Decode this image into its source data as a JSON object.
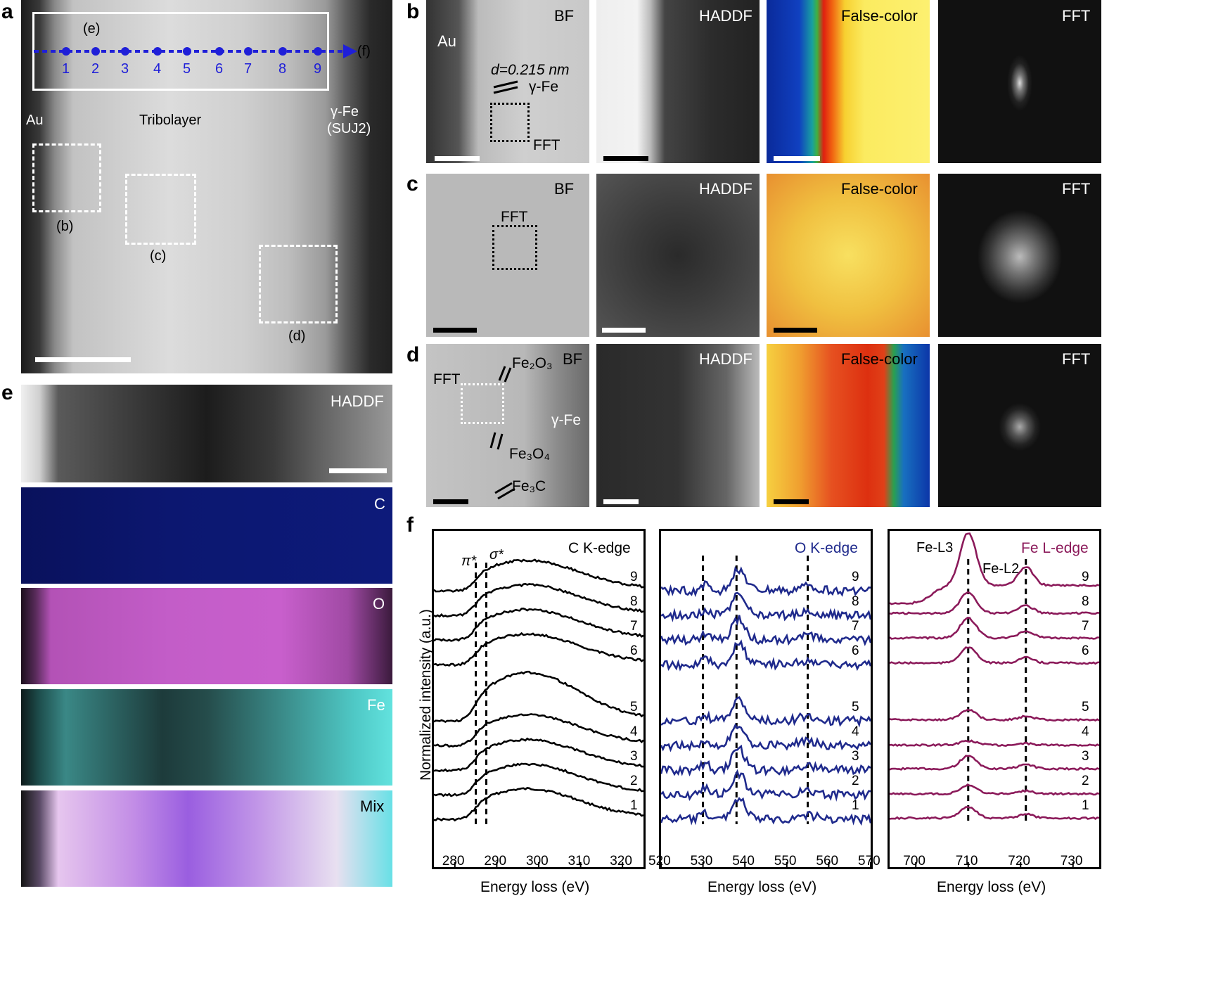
{
  "panel_letters": {
    "a": "a",
    "b": "b",
    "c": "c",
    "d": "d",
    "e": "e",
    "f": "f"
  },
  "panel_a": {
    "roi_label": "(e)",
    "arrow_label": "(f)",
    "points": [
      "1",
      "2",
      "3",
      "4",
      "5",
      "6",
      "7",
      "8",
      "9"
    ],
    "left_label": "Au",
    "center_label": "Tribolayer",
    "right_label_1": "γ-Fe",
    "right_label_2": "(SUJ2)",
    "box_labels": [
      "(b)",
      "(c)",
      "(d)"
    ]
  },
  "panel_b": {
    "labels": [
      "BF",
      "HADDF",
      "False-color",
      "FFT"
    ],
    "au": "Au",
    "d_spacing": "d=0.215 nm",
    "phase": "γ-Fe",
    "fft": "FFT"
  },
  "panel_c": {
    "labels": [
      "BF",
      "HADDF",
      "False-color",
      "FFT"
    ],
    "fft": "FFT"
  },
  "panel_d": {
    "labels": [
      "BF",
      "HADDF",
      "False-color",
      "FFT"
    ],
    "fft": "FFT",
    "fe2o3": "Fe₂O₃",
    "fe3o4": "Fe₃O₄",
    "fe3c": "Fe₃C",
    "gfe": "γ-Fe"
  },
  "panel_e": {
    "labels": [
      "HADDF",
      "C",
      "O",
      "Fe",
      "Mix"
    ],
    "colors": {
      "C": "#0b1570",
      "O": "#c25ac6",
      "Fe": "#3ea7a4"
    }
  },
  "panel_f": {
    "ylabel": "Normalized intensity (a.u.)",
    "xlabel": "Energy loss (eV)",
    "subplots": [
      {
        "title": "C K-edge",
        "color": "#000000",
        "xticks": [
          "280",
          "290",
          "300",
          "310",
          "320"
        ],
        "marks": [
          "π*",
          "σ*"
        ]
      },
      {
        "title": "O K-edge",
        "color": "#1f2a8c",
        "xticks": [
          "520",
          "530",
          "540",
          "550",
          "560",
          "570"
        ]
      },
      {
        "title": "Fe L-edge",
        "color": "#8b1a5a",
        "xticks": [
          "700",
          "710",
          "720",
          "730"
        ],
        "marks": [
          "Fe-L3",
          "Fe-L2"
        ]
      }
    ],
    "spectrum_labels": [
      "1",
      "2",
      "3",
      "4",
      "5",
      "6",
      "7",
      "8",
      "9"
    ]
  },
  "chart_data": [
    {
      "type": "line",
      "title": "C K-edge",
      "xlabel": "Energy loss (eV)",
      "ylabel": "Normalized intensity (a.u.)",
      "xlim": [
        275,
        325
      ],
      "reference_lines": [
        285,
        287.5
      ],
      "series": [
        {
          "name": "1"
        },
        {
          "name": "2"
        },
        {
          "name": "3"
        },
        {
          "name": "4"
        },
        {
          "name": "5"
        },
        {
          "name": "6"
        },
        {
          "name": "7"
        },
        {
          "name": "8"
        },
        {
          "name": "9"
        }
      ]
    },
    {
      "type": "line",
      "title": "O K-edge",
      "xlabel": "Energy loss (eV)",
      "xlim": [
        520,
        570
      ],
      "reference_lines": [
        530,
        538,
        555
      ],
      "series": [
        {
          "name": "1"
        },
        {
          "name": "2"
        },
        {
          "name": "3"
        },
        {
          "name": "4"
        },
        {
          "name": "5"
        },
        {
          "name": "6"
        },
        {
          "name": "7"
        },
        {
          "name": "8"
        },
        {
          "name": "9"
        }
      ]
    },
    {
      "type": "line",
      "title": "Fe L-edge",
      "xlabel": "Energy loss (eV)",
      "xlim": [
        695,
        735
      ],
      "reference_lines": [
        710,
        721
      ],
      "series": [
        {
          "name": "1"
        },
        {
          "name": "2"
        },
        {
          "name": "3"
        },
        {
          "name": "4"
        },
        {
          "name": "5"
        },
        {
          "name": "6"
        },
        {
          "name": "7"
        },
        {
          "name": "8"
        },
        {
          "name": "9"
        }
      ]
    }
  ]
}
